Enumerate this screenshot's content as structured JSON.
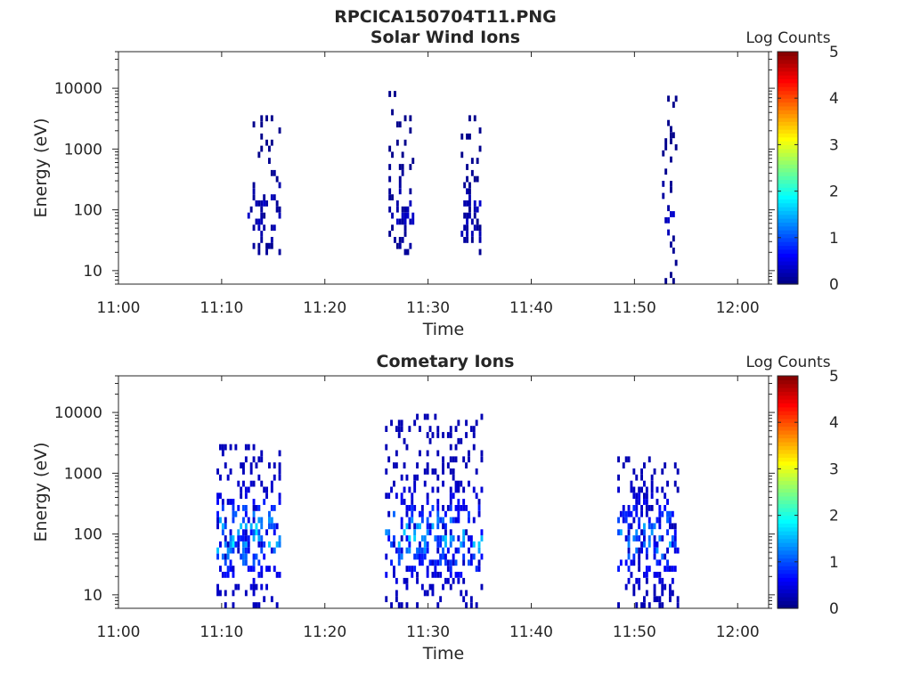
{
  "figure_title": "RPCICA150704T11.PNG",
  "chart_data": [
    {
      "type": "heatmap",
      "title": "Solar Wind Ions",
      "xlabel": "Time",
      "ylabel": "Energy (eV)",
      "yscale": "log",
      "xlim": [
        "11:00",
        "12:03"
      ],
      "ylim": [
        6,
        40000
      ],
      "xticks": [
        "11:00",
        "11:10",
        "11:20",
        "11:30",
        "11:40",
        "11:50",
        "12:00"
      ],
      "yticks": [
        "10",
        "100",
        "1000",
        "10000"
      ],
      "colorbar": {
        "label": "Log Counts",
        "range": [
          0,
          5
        ],
        "ticks": [
          "0",
          "1",
          "2",
          "3",
          "4",
          "5"
        ],
        "colormap": "jet"
      },
      "bursts": [
        {
          "start": "11:12:30",
          "end": "11:15:40",
          "energy_min": 18,
          "energy_max": 3300,
          "peak_log_counts": 0.4
        },
        {
          "start": "11:26:10",
          "end": "11:28:40",
          "energy_min": 18,
          "energy_max": 9000,
          "peak_log_counts": 0.4
        },
        {
          "start": "11:33:10",
          "end": "11:35:10",
          "energy_min": 18,
          "energy_max": 3500,
          "peak_log_counts": 0.4
        },
        {
          "start": "11:52:40",
          "end": "11:54:10",
          "energy_min": 6,
          "energy_max": 7000,
          "peak_log_counts": 0.4
        }
      ]
    },
    {
      "type": "heatmap",
      "title": "Cometary Ions",
      "xlabel": "Time",
      "ylabel": "Energy (eV)",
      "yscale": "log",
      "xlim": [
        "11:00",
        "12:03"
      ],
      "ylim": [
        6,
        40000
      ],
      "xticks": [
        "11:00",
        "11:10",
        "11:20",
        "11:30",
        "11:40",
        "11:50",
        "12:00"
      ],
      "yticks": [
        "10",
        "100",
        "1000",
        "10000"
      ],
      "colorbar": {
        "label": "Log Counts",
        "range": [
          0,
          5
        ],
        "ticks": [
          "0",
          "1",
          "2",
          "3",
          "4",
          "5"
        ],
        "colormap": "jet"
      },
      "bursts": [
        {
          "start": "11:09:30",
          "end": "11:15:40",
          "energy_min": 6,
          "energy_max": 3000,
          "peak_log_counts": 1.9
        },
        {
          "start": "11:25:50",
          "end": "11:35:10",
          "energy_min": 6,
          "energy_max": 9000,
          "peak_log_counts": 1.7
        },
        {
          "start": "11:48:20",
          "end": "11:54:10",
          "energy_min": 6,
          "energy_max": 1800,
          "peak_log_counts": 1.6
        }
      ]
    }
  ]
}
